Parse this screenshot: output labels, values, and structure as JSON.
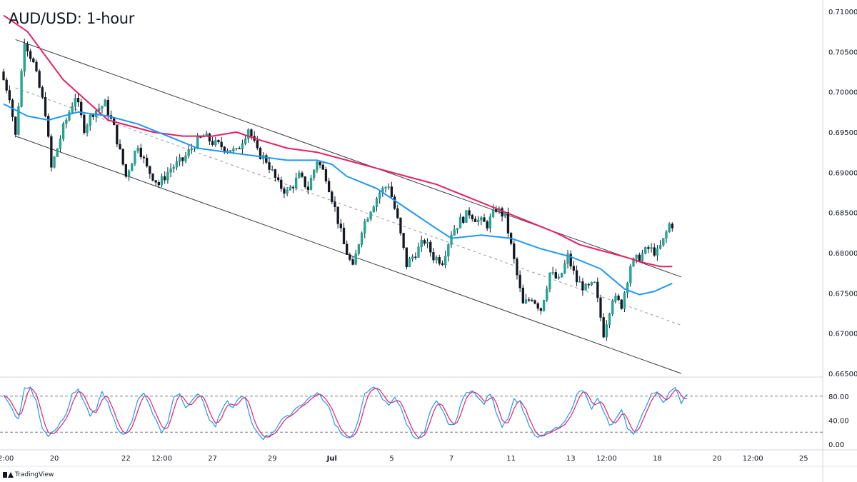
{
  "chart_data": {
    "type": "candlestick",
    "title": "AUD/USD: 1-hour",
    "y_axis": {
      "min": 0.665,
      "max": 0.71,
      "ticks": [
        "0.71000",
        "0.70500",
        "0.70000",
        "0.69500",
        "0.69000",
        "0.68500",
        "0.68000",
        "0.67500",
        "0.67000",
        "0.66500"
      ]
    },
    "x_axis": {
      "ticks": [
        {
          "label": "12:00",
          "bar": 0
        },
        {
          "label": "20",
          "bar": 17
        },
        {
          "label": "22",
          "bar": 41
        },
        {
          "label": "12:00",
          "bar": 53
        },
        {
          "label": "27",
          "bar": 70
        },
        {
          "label": "29",
          "bar": 90
        },
        {
          "label": "Jul",
          "bar": 110,
          "bold": true
        },
        {
          "label": "5",
          "bar": 130
        },
        {
          "label": "7",
          "bar": 150
        },
        {
          "label": "11",
          "bar": 170
        },
        {
          "label": "13",
          "bar": 190
        },
        {
          "label": "12:00",
          "bar": 202
        },
        {
          "label": "18",
          "bar": 219
        },
        {
          "label": "20",
          "bar": 239
        },
        {
          "label": "12:00",
          "bar": 251
        },
        {
          "label": "25",
          "bar": 268
        }
      ]
    },
    "price_path": [
      [
        0,
        0.7025
      ],
      [
        3,
        0.6995
      ],
      [
        5,
        0.6945
      ],
      [
        8,
        0.7065
      ],
      [
        11,
        0.7035
      ],
      [
        15,
        0.6975
      ],
      [
        17,
        0.6905
      ],
      [
        21,
        0.6955
      ],
      [
        25,
        0.6995
      ],
      [
        28,
        0.6955
      ],
      [
        31,
        0.6975
      ],
      [
        35,
        0.6985
      ],
      [
        38,
        0.6955
      ],
      [
        42,
        0.6895
      ],
      [
        46,
        0.6935
      ],
      [
        49,
        0.6905
      ],
      [
        53,
        0.6885
      ],
      [
        57,
        0.6905
      ],
      [
        61,
        0.6915
      ],
      [
        65,
        0.6935
      ],
      [
        68,
        0.6945
      ],
      [
        72,
        0.6935
      ],
      [
        76,
        0.693
      ],
      [
        79,
        0.6925
      ],
      [
        83,
        0.6955
      ],
      [
        86,
        0.6925
      ],
      [
        89,
        0.6915
      ],
      [
        93,
        0.6885
      ],
      [
        96,
        0.6875
      ],
      [
        100,
        0.6895
      ],
      [
        103,
        0.688
      ],
      [
        106,
        0.6915
      ],
      [
        109,
        0.6895
      ],
      [
        112,
        0.6855
      ],
      [
        115,
        0.681
      ],
      [
        118,
        0.678
      ],
      [
        121,
        0.683
      ],
      [
        124,
        0.6855
      ],
      [
        127,
        0.6875
      ],
      [
        130,
        0.6885
      ],
      [
        133,
        0.684
      ],
      [
        136,
        0.6785
      ],
      [
        139,
        0.68
      ],
      [
        142,
        0.6815
      ],
      [
        145,
        0.6795
      ],
      [
        148,
        0.679
      ],
      [
        151,
        0.6825
      ],
      [
        154,
        0.684
      ],
      [
        157,
        0.685
      ],
      [
        160,
        0.684
      ],
      [
        163,
        0.6835
      ],
      [
        166,
        0.6855
      ],
      [
        169,
        0.6845
      ],
      [
        172,
        0.679
      ],
      [
        175,
        0.6735
      ],
      [
        178,
        0.6745
      ],
      [
        181,
        0.673
      ],
      [
        184,
        0.6775
      ],
      [
        187,
        0.6765
      ],
      [
        190,
        0.6795
      ],
      [
        193,
        0.6765
      ],
      [
        196,
        0.6755
      ],
      [
        199,
        0.676
      ],
      [
        202,
        0.67
      ],
      [
        205,
        0.6745
      ],
      [
        208,
        0.6735
      ],
      [
        211,
        0.6785
      ],
      [
        214,
        0.6795
      ],
      [
        217,
        0.6805
      ],
      [
        220,
        0.68
      ],
      [
        222,
        0.6815
      ],
      [
        224,
        0.6835
      ]
    ],
    "ma_magenta": [
      [
        0,
        0.7095
      ],
      [
        8,
        0.7075
      ],
      [
        20,
        0.7015
      ],
      [
        35,
        0.6965
      ],
      [
        50,
        0.695
      ],
      [
        60,
        0.6945
      ],
      [
        70,
        0.6945
      ],
      [
        78,
        0.695
      ],
      [
        86,
        0.694
      ],
      [
        95,
        0.693
      ],
      [
        105,
        0.6925
      ],
      [
        115,
        0.6915
      ],
      [
        125,
        0.6905
      ],
      [
        135,
        0.6895
      ],
      [
        145,
        0.6885
      ],
      [
        155,
        0.687
      ],
      [
        165,
        0.6855
      ],
      [
        175,
        0.684
      ],
      [
        185,
        0.6825
      ],
      [
        193,
        0.681
      ],
      [
        200,
        0.6803
      ],
      [
        208,
        0.6795
      ],
      [
        214,
        0.6788
      ],
      [
        220,
        0.6783
      ],
      [
        224,
        0.6783
      ]
    ],
    "ma_blue": [
      [
        0,
        0.6985
      ],
      [
        8,
        0.697
      ],
      [
        15,
        0.6965
      ],
      [
        25,
        0.6975
      ],
      [
        35,
        0.697
      ],
      [
        45,
        0.696
      ],
      [
        55,
        0.6945
      ],
      [
        65,
        0.693
      ],
      [
        75,
        0.6925
      ],
      [
        85,
        0.692
      ],
      [
        95,
        0.6915
      ],
      [
        105,
        0.6915
      ],
      [
        110,
        0.691
      ],
      [
        115,
        0.6895
      ],
      [
        125,
        0.688
      ],
      [
        135,
        0.6855
      ],
      [
        145,
        0.683
      ],
      [
        150,
        0.6818
      ],
      [
        160,
        0.6822
      ],
      [
        170,
        0.6818
      ],
      [
        180,
        0.6805
      ],
      [
        190,
        0.6795
      ],
      [
        200,
        0.678
      ],
      [
        208,
        0.6755
      ],
      [
        213,
        0.6748
      ],
      [
        218,
        0.6752
      ],
      [
        224,
        0.6762
      ]
    ],
    "channel_upper": [
      [
        4,
        0.7065
      ],
      [
        227,
        0.677
      ]
    ],
    "channel_lower": [
      [
        4,
        0.6945
      ],
      [
        227,
        0.665
      ]
    ],
    "channel_mid": [
      [
        4,
        0.7005
      ],
      [
        227,
        0.671
      ]
    ],
    "oscillator": {
      "y_ticks": [
        "80.00",
        "40.00",
        "0.00"
      ],
      "levels": [
        80,
        20
      ],
      "k": [
        [
          0,
          80
        ],
        [
          2,
          65
        ],
        [
          5,
          40
        ],
        [
          7,
          92
        ],
        [
          9,
          95
        ],
        [
          11,
          70
        ],
        [
          13,
          25
        ],
        [
          15,
          15
        ],
        [
          17,
          20
        ],
        [
          19,
          35
        ],
        [
          21,
          50
        ],
        [
          23,
          85
        ],
        [
          25,
          92
        ],
        [
          27,
          70
        ],
        [
          29,
          45
        ],
        [
          31,
          60
        ],
        [
          33,
          85
        ],
        [
          35,
          72
        ],
        [
          37,
          40
        ],
        [
          39,
          20
        ],
        [
          41,
          15
        ],
        [
          43,
          40
        ],
        [
          45,
          75
        ],
        [
          47,
          85
        ],
        [
          49,
          65
        ],
        [
          51,
          40
        ],
        [
          53,
          20
        ],
        [
          55,
          35
        ],
        [
          57,
          80
        ],
        [
          59,
          85
        ],
        [
          61,
          60
        ],
        [
          63,
          75
        ],
        [
          65,
          85
        ],
        [
          67,
          70
        ],
        [
          69,
          40
        ],
        [
          71,
          30
        ],
        [
          73,
          55
        ],
        [
          75,
          70
        ],
        [
          77,
          60
        ],
        [
          79,
          80
        ],
        [
          81,
          75
        ],
        [
          83,
          35
        ],
        [
          85,
          20
        ],
        [
          87,
          10
        ],
        [
          89,
          15
        ],
        [
          91,
          25
        ],
        [
          93,
          40
        ],
        [
          95,
          45
        ],
        [
          97,
          55
        ],
        [
          99,
          65
        ],
        [
          101,
          70
        ],
        [
          103,
          80
        ],
        [
          105,
          85
        ],
        [
          107,
          75
        ],
        [
          109,
          60
        ],
        [
          111,
          35
        ],
        [
          113,
          20
        ],
        [
          115,
          10
        ],
        [
          117,
          15
        ],
        [
          119,
          40
        ],
        [
          121,
          85
        ],
        [
          123,
          95
        ],
        [
          125,
          90
        ],
        [
          127,
          75
        ],
        [
          129,
          65
        ],
        [
          131,
          80
        ],
        [
          133,
          60
        ],
        [
          135,
          35
        ],
        [
          137,
          15
        ],
        [
          139,
          10
        ],
        [
          141,
          20
        ],
        [
          143,
          55
        ],
        [
          145,
          70
        ],
        [
          147,
          55
        ],
        [
          149,
          35
        ],
        [
          151,
          30
        ],
        [
          153,
          65
        ],
        [
          155,
          85
        ],
        [
          157,
          92
        ],
        [
          159,
          75
        ],
        [
          161,
          68
        ],
        [
          163,
          85
        ],
        [
          165,
          55
        ],
        [
          167,
          30
        ],
        [
          169,
          45
        ],
        [
          171,
          75
        ],
        [
          173,
          70
        ],
        [
          175,
          45
        ],
        [
          177,
          20
        ],
        [
          179,
          10
        ],
        [
          181,
          15
        ],
        [
          183,
          22
        ],
        [
          185,
          25
        ],
        [
          187,
          30
        ],
        [
          189,
          45
        ],
        [
          191,
          70
        ],
        [
          193,
          90
        ],
        [
          195,
          85
        ],
        [
          197,
          60
        ],
        [
          199,
          75
        ],
        [
          201,
          55
        ],
        [
          203,
          30
        ],
        [
          205,
          40
        ],
        [
          207,
          55
        ],
        [
          209,
          28
        ],
        [
          211,
          15
        ],
        [
          213,
          40
        ],
        [
          215,
          60
        ],
        [
          217,
          82
        ],
        [
          219,
          88
        ],
        [
          221,
          70
        ],
        [
          223,
          86
        ],
        [
          225,
          92
        ],
        [
          227,
          70
        ],
        [
          229,
          85
        ]
      ]
    }
  }
}
